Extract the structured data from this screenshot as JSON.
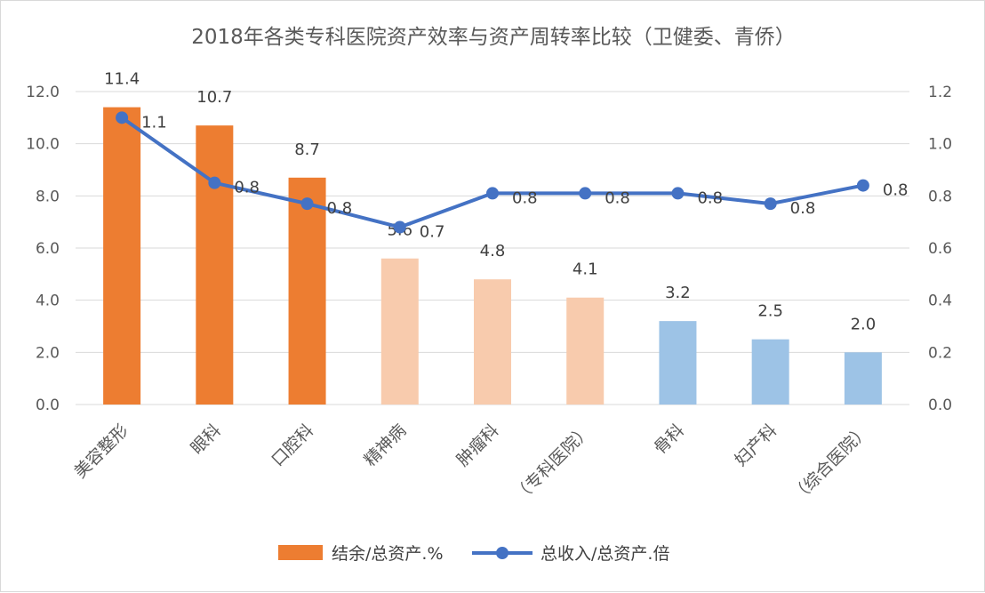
{
  "chart_data": {
    "type": "bar+line",
    "title": "2018年各类专科医院资产效率与资产周转率比较（卫健委、青侨）",
    "categories": [
      "美容整形",
      "眼科",
      "口腔科",
      "精神病",
      "肿瘤科",
      "（专科医院）",
      "骨科",
      "妇产科",
      "（综合医院）"
    ],
    "series": [
      {
        "name": "结余/总资产.%",
        "type": "bar",
        "axis": "left",
        "values": [
          11.4,
          10.7,
          8.7,
          5.6,
          4.8,
          4.1,
          3.2,
          2.5,
          2.0
        ],
        "labels": [
          "11.4",
          "10.7",
          "8.7",
          "5.6",
          "4.8",
          "4.1",
          "3.2",
          "2.5",
          "2.0"
        ],
        "colors": [
          "#ed7d31",
          "#ed7d31",
          "#ed7d31",
          "#f8cbad",
          "#f8cbad",
          "#f8cbad",
          "#9dc3e6",
          "#9dc3e6",
          "#9dc3e6"
        ]
      },
      {
        "name": "总收入/总资产.倍",
        "type": "line",
        "axis": "right",
        "values": [
          1.1,
          0.85,
          0.77,
          0.68,
          0.81,
          0.81,
          0.81,
          0.77,
          0.84
        ],
        "labels": [
          "1.1",
          "0.8",
          "0.8",
          "0.7",
          "0.8",
          "0.8",
          "0.8",
          "0.8",
          "0.8"
        ],
        "color": "#4472c4"
      }
    ],
    "y_left": {
      "min": 0,
      "max": 12,
      "step": 2,
      "ticks": [
        "0.0",
        "2.0",
        "4.0",
        "6.0",
        "8.0",
        "10.0",
        "12.0"
      ]
    },
    "y_right": {
      "min": 0,
      "max": 1.2,
      "step": 0.2,
      "ticks": [
        "0.0",
        "0.2",
        "0.4",
        "0.6",
        "0.8",
        "1.0",
        "1.2"
      ]
    },
    "grid": true,
    "legend": "bottom"
  }
}
